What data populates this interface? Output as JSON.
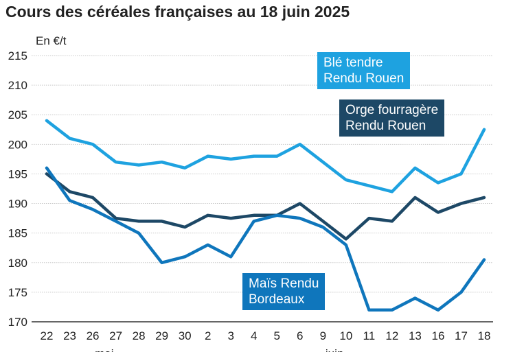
{
  "title": "Cours des céréales françaises au 18 juin 2025",
  "chart_data": {
    "type": "line",
    "title": "Cours des céréales françaises au 18 juin 2025",
    "ylabel": "En €/t",
    "ylim": [
      170,
      215
    ],
    "yticks": [
      170,
      175,
      180,
      185,
      190,
      195,
      200,
      205,
      210,
      215
    ],
    "grid": true,
    "categories": [
      "22",
      "23",
      "26",
      "27",
      "28",
      "29",
      "30",
      "2",
      "3",
      "4",
      "5",
      "6",
      "9",
      "10",
      "11",
      "12",
      "13",
      "16",
      "17",
      "18"
    ],
    "month_labels": [
      {
        "label": "mai",
        "at": 2.5
      },
      {
        "label": "juin",
        "at": 12.5
      }
    ],
    "series": [
      {
        "name": "Blé tendre Rendu Rouen",
        "color": "#1ea2e0",
        "values": [
          204,
          201,
          200,
          197,
          196.5,
          197,
          196,
          198,
          197.5,
          198,
          198,
          200,
          197,
          194,
          193,
          192,
          196,
          193.5,
          195,
          202.5
        ]
      },
      {
        "name": "Orge fourragère Rendu Rouen",
        "color": "#1d4866",
        "values": [
          195,
          192,
          191,
          187.5,
          187,
          187,
          186,
          188,
          187.5,
          188,
          188,
          190,
          187,
          184,
          187.5,
          187,
          191,
          188.5,
          190,
          191
        ]
      },
      {
        "name": "Maïs Rendu Bordeaux",
        "color": "#0f76bc",
        "values": [
          196,
          190.5,
          189,
          187,
          185,
          180,
          181,
          183,
          181,
          187,
          188,
          187.5,
          186,
          183,
          172,
          172,
          174,
          172,
          175,
          180.5
        ]
      }
    ],
    "legend": [
      {
        "line1": "Blé tendre",
        "line2": "Rendu Rouen",
        "color": "#1ea2e0"
      },
      {
        "line1": "Orge fourragère",
        "line2": "Rendu Rouen",
        "color": "#1d4866"
      },
      {
        "line1": "Maïs Rendu",
        "line2": "Bordeaux",
        "color": "#0f76bc"
      }
    ]
  }
}
